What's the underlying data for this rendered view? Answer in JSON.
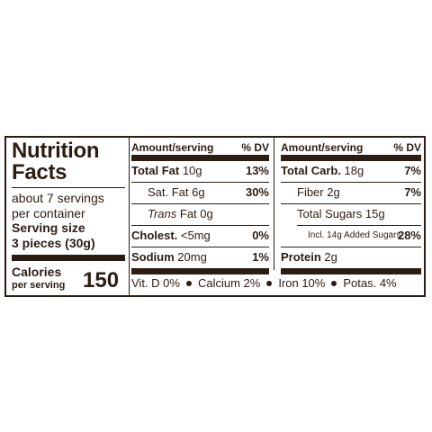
{
  "title_line1": "Nutrition",
  "title_line2": "Facts",
  "servings_line1": "about 7 servings",
  "servings_line2": "per container",
  "serving_size_label": "Serving size",
  "serving_size_value": "3 pieces (30g)",
  "calories_label": "Calories",
  "calories_sub": "per serving",
  "calories_value": "150",
  "header_amount": "Amount/serving",
  "header_dv": "% DV",
  "left_rows": [
    {
      "name_bold": "Total Fat",
      "amount": " 10g",
      "dv": "13%"
    },
    {
      "name": "Sat. Fat 6g",
      "dv": "30%"
    },
    {
      "name_italic": "Trans",
      "amount": " Fat 0g",
      "dv": ""
    },
    {
      "name_bold": "Cholest.",
      "amount": " <5mg",
      "dv": "0%"
    },
    {
      "name_bold": "Sodium",
      "amount": " 20mg",
      "dv": "1%"
    }
  ],
  "right_rows": [
    {
      "name_bold": "Total Carb.",
      "amount": " 18g",
      "dv": "7%"
    },
    {
      "name": "Fiber 2g",
      "dv": "7%"
    },
    {
      "name": "Total Sugars 15g",
      "dv": ""
    },
    {
      "name": "Incl. 14g Added Sugars",
      "dv": "28%"
    },
    {
      "name_bold": "Protein",
      "amount": " 2g",
      "dv": ""
    }
  ],
  "footer": [
    "Vit. D 0%",
    "Calcium 2%",
    "Iron 10%",
    "Potas. 4%"
  ]
}
